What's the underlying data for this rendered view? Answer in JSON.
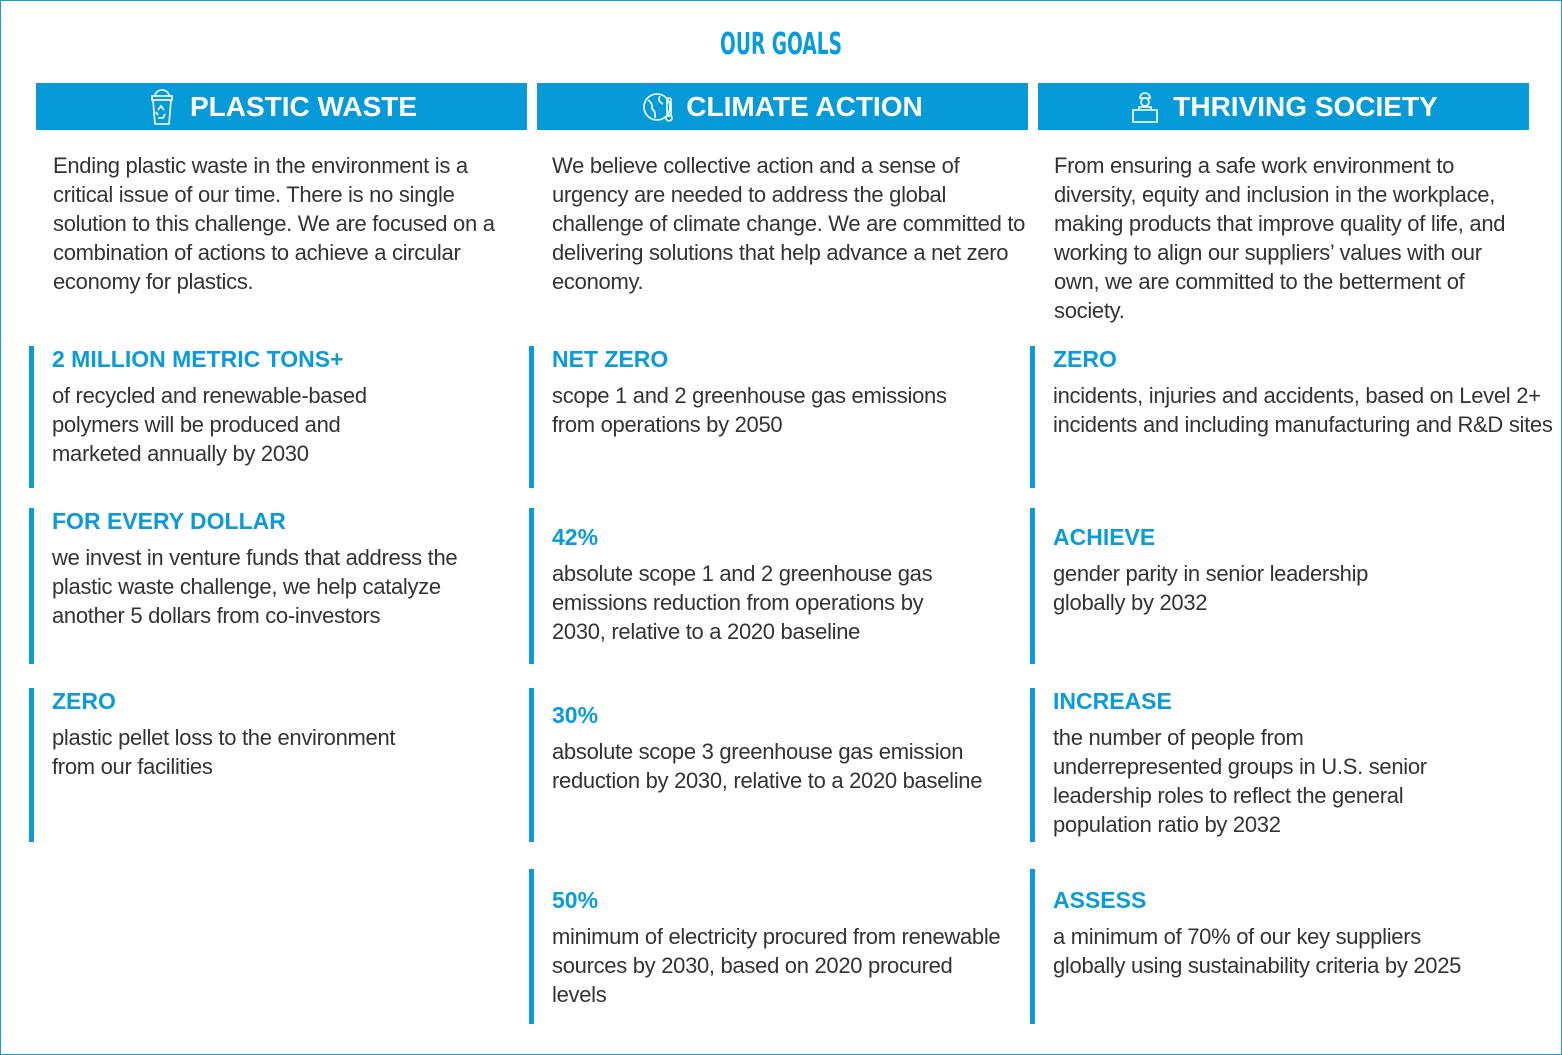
{
  "title": "OUR GOALS",
  "columns": [
    {
      "header": "PLASTIC WASTE",
      "icon": "recycle-bin-icon",
      "intro": "Ending plastic waste in the environment is a critical issue of our time. There is no single solution to this challenge. We are focused on a combination of actions to achieve a circular economy for plastics.",
      "goals": [
        {
          "heading": "2 MILLION METRIC TONS+",
          "text": "of recycled and renewable-based polymers will be produced and marketed annually by 2030"
        },
        {
          "heading": "FOR EVERY DOLLAR",
          "text": "we invest in venture funds that address the plastic waste challenge, we help catalyze another 5 dollars from co-investors"
        },
        {
          "heading": "ZERO",
          "text": "plastic pellet loss to the environment from our facilities"
        }
      ]
    },
    {
      "header": "CLIMATE ACTION",
      "icon": "globe-thermometer-icon",
      "intro": "We believe collective action and a sense of urgency are needed to address the global challenge of climate change. We are committed to delivering solutions that help advance a net zero economy.",
      "goals": [
        {
          "heading": "NET ZERO",
          "text": "scope 1 and 2 greenhouse gas emissions from operations by 2050"
        },
        {
          "heading": "42%",
          "text": "absolute scope 1 and 2 greenhouse gas emissions reduction from operations by 2030, relative to a 2020 baseline"
        },
        {
          "heading": "30%",
          "text": "absolute scope 3 greenhouse gas emission reduction by 2030, relative to a 2020 baseline"
        },
        {
          "heading": "50%",
          "text": "minimum of electricity procured from renewable sources by 2030, based on 2020 procured levels"
        }
      ]
    },
    {
      "header": "THRIVING SOCIETY",
      "icon": "worker-icon",
      "intro": "From ensuring a safe work environment to diversity, equity and inclusion in the workplace, making products that improve quality of life, and working to align our suppliers’ values with our own, we are committed to the betterment of society.",
      "goals": [
        {
          "heading": "ZERO",
          "text": "incidents, injuries and accidents, based on Level  2+ incidents and including manufacturing and R&D sites"
        },
        {
          "heading": "ACHIEVE",
          "text": "gender parity in senior leadership globally by 2032"
        },
        {
          "heading": "INCREASE",
          "text": "the number of people from underrepresented groups in U.S. senior leadership roles to reflect the general population ratio by 2032"
        },
        {
          "heading": "ASSESS",
          "text": "a minimum of 70% of our key suppliers globally using sustainability criteria by 2025"
        }
      ]
    }
  ]
}
